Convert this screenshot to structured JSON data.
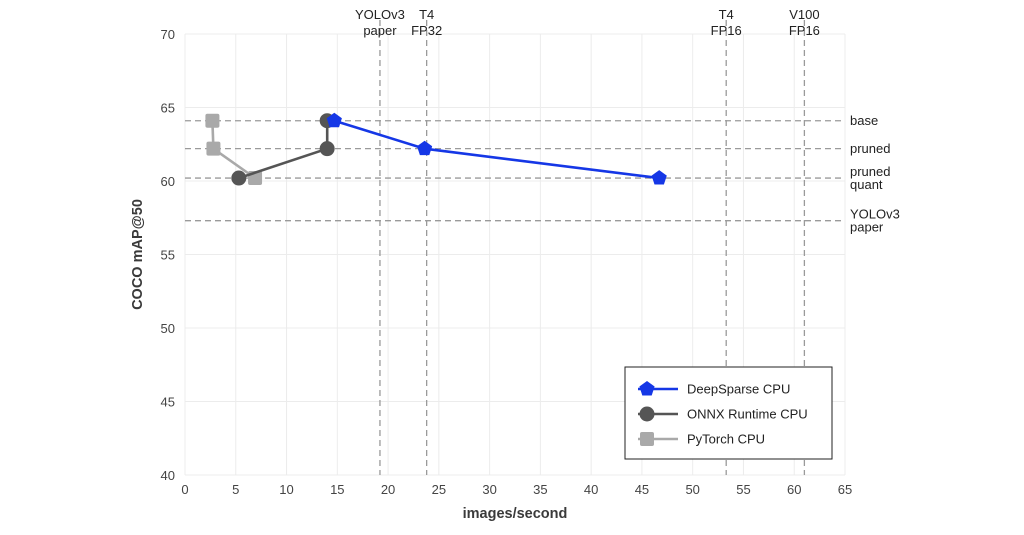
{
  "chart_data": {
    "type": "line",
    "xlabel": "images/second",
    "ylabel": "COCO mAP@50",
    "xlim": [
      0,
      65
    ],
    "ylim": [
      40,
      70
    ],
    "x_ticks": [
      0,
      5,
      10,
      15,
      20,
      25,
      30,
      35,
      40,
      45,
      50,
      55,
      60,
      65
    ],
    "y_ticks": [
      40,
      45,
      50,
      55,
      60,
      65,
      70
    ],
    "grid": true,
    "legend_position": "bottom-right",
    "series": [
      {
        "name": "DeepSparse CPU",
        "color": "#1537e6",
        "marker": "pentagon",
        "points": [
          [
            14.7,
            64.1
          ],
          [
            23.6,
            62.2
          ],
          [
            46.7,
            60.2
          ]
        ]
      },
      {
        "name": "ONNX Runtime CPU",
        "color": "#555555",
        "marker": "circle",
        "points": [
          [
            14.0,
            64.1
          ],
          [
            14.0,
            62.2
          ],
          [
            5.3,
            60.2
          ]
        ]
      },
      {
        "name": "PyTorch CPU",
        "color": "#a9a9a9",
        "marker": "square",
        "points": [
          [
            2.7,
            64.1
          ],
          [
            2.8,
            62.2
          ],
          [
            6.9,
            60.2
          ]
        ]
      }
    ],
    "horizontal_reference_lines": [
      {
        "y": 64.1,
        "label": [
          "base"
        ]
      },
      {
        "y": 62.2,
        "label": [
          "pruned"
        ]
      },
      {
        "y": 60.2,
        "label": [
          "pruned",
          "quant"
        ]
      },
      {
        "y": 57.3,
        "label": [
          "YOLOv3",
          "paper"
        ]
      }
    ],
    "vertical_reference_lines": [
      {
        "x": 19.2,
        "label": [
          "YOLOv3",
          "paper"
        ]
      },
      {
        "x": 23.8,
        "label": [
          "T4",
          "FP32"
        ]
      },
      {
        "x": 53.3,
        "label": [
          "T4",
          "FP16"
        ]
      },
      {
        "x": 61.0,
        "label": [
          "V100",
          "FP16"
        ]
      }
    ]
  }
}
